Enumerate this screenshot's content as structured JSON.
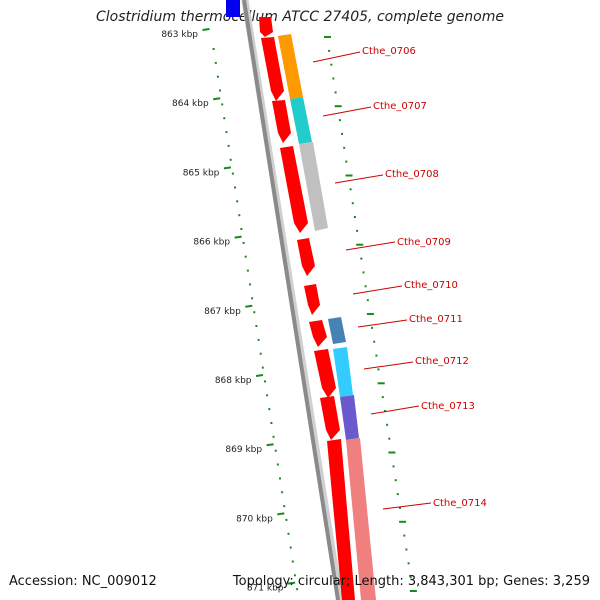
{
  "title": "Clostridium thermocellum ATCC 27405, complete genome",
  "accession": "Accession: NC_009012",
  "topology": "Topology: circular; Length: 3,843,301 bp; Genes: 3,259",
  "kbp_labels": [
    "863 kbp",
    "864 kbp",
    "865 kbp",
    "866 kbp",
    "867 kbp",
    "868 kbp",
    "869 kbp",
    "870 kbp",
    "871 kbp"
  ],
  "gene_labels": [
    "Cthe_0706",
    "Cthe_0707",
    "Cthe_0708",
    "Cthe_0709",
    "Cthe_0710",
    "Cthe_0711",
    "Cthe_0712",
    "Cthe_0713",
    "Cthe_0714"
  ],
  "colors": {
    "cds": "#ff0000",
    "backbone": "#8a8a8a",
    "tick": "#1a8a1a",
    "label": "#cc0000",
    "cog": [
      "#ff9900",
      "#22cccc",
      "#c0c0c0",
      "#4682b4",
      "#33ccff",
      "#6a5acd",
      "#f08080"
    ]
  }
}
